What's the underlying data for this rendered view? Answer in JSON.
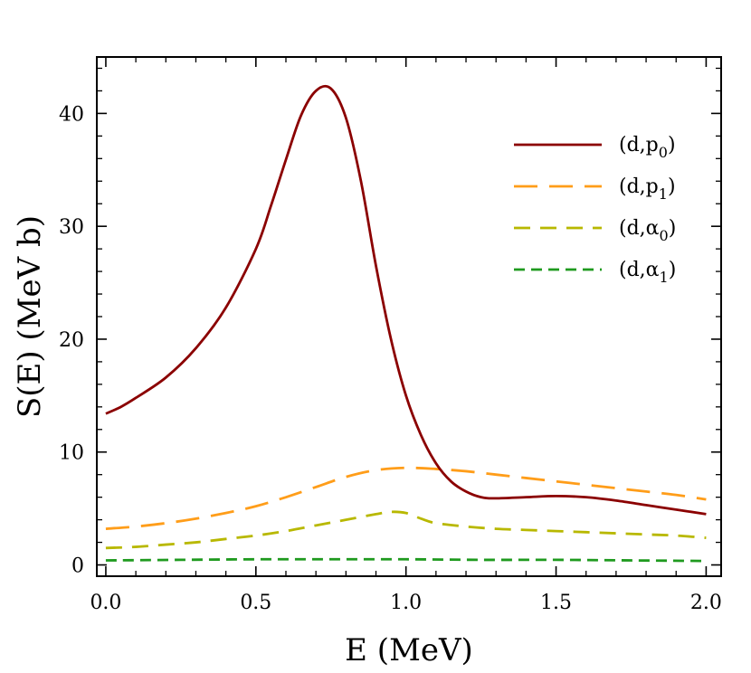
{
  "chart_data": {
    "type": "line",
    "title": "",
    "xlabel": "E (MeV)",
    "ylabel": "S(E) (MeV b)",
    "xlim": [
      -0.03,
      2.05
    ],
    "ylim": [
      -1,
      45
    ],
    "xticks": [
      {
        "value": 0.0,
        "label": "0.0"
      },
      {
        "value": 0.5,
        "label": "0.5"
      },
      {
        "value": 1.0,
        "label": "1.0"
      },
      {
        "value": 1.5,
        "label": "1.5"
      },
      {
        "value": 2.0,
        "label": "2.0"
      }
    ],
    "yticks": [
      {
        "value": 0,
        "label": "0"
      },
      {
        "value": 10,
        "label": "10"
      },
      {
        "value": 20,
        "label": "20"
      },
      {
        "value": 30,
        "label": "30"
      },
      {
        "value": 40,
        "label": "40"
      }
    ],
    "grid": false,
    "legend_position": "top-right",
    "series": [
      {
        "name": "(d,p0)",
        "label_main": "(d,p",
        "label_sub": "0",
        "label_close": ")",
        "color": "#8b0000",
        "dash": "solid",
        "x": [
          0.0,
          0.05,
          0.1,
          0.2,
          0.3,
          0.4,
          0.5,
          0.55,
          0.6,
          0.65,
          0.7,
          0.75,
          0.8,
          0.85,
          0.9,
          0.95,
          1.0,
          1.05,
          1.1,
          1.15,
          1.2,
          1.25,
          1.3,
          1.4,
          1.5,
          1.6,
          1.7,
          1.8,
          1.9,
          2.0
        ],
        "y": [
          13.4,
          14.0,
          14.8,
          16.6,
          19.2,
          22.8,
          28.0,
          31.8,
          35.9,
          39.8,
          42.0,
          42.2,
          39.6,
          34.0,
          26.5,
          20.0,
          15.0,
          11.5,
          9.0,
          7.4,
          6.5,
          6.0,
          5.9,
          6.0,
          6.1,
          6.0,
          5.7,
          5.3,
          4.9,
          4.5
        ]
      },
      {
        "name": "(d,p1)",
        "label_main": "(d,p",
        "label_sub": "1",
        "label_close": ")",
        "color": "#ff9d19",
        "dash": "26 13",
        "x": [
          0.0,
          0.1,
          0.2,
          0.3,
          0.4,
          0.5,
          0.6,
          0.7,
          0.8,
          0.9,
          1.0,
          1.1,
          1.2,
          1.3,
          1.4,
          1.5,
          1.6,
          1.7,
          1.8,
          1.9,
          2.0
        ],
        "y": [
          3.2,
          3.4,
          3.7,
          4.1,
          4.6,
          5.2,
          6.0,
          6.9,
          7.8,
          8.4,
          8.6,
          8.5,
          8.3,
          8.0,
          7.7,
          7.4,
          7.1,
          6.8,
          6.5,
          6.2,
          5.8
        ]
      },
      {
        "name": "(d,α0)",
        "label_main": "(d,α",
        "label_sub": "0",
        "label_close": ")",
        "color": "#b8b800",
        "dash": "18 11",
        "x": [
          0.0,
          0.1,
          0.2,
          0.3,
          0.4,
          0.5,
          0.6,
          0.7,
          0.8,
          0.9,
          0.95,
          1.0,
          1.05,
          1.1,
          1.2,
          1.3,
          1.4,
          1.5,
          1.6,
          1.7,
          1.8,
          1.9,
          2.0
        ],
        "y": [
          1.5,
          1.6,
          1.8,
          2.0,
          2.3,
          2.6,
          3.0,
          3.5,
          4.0,
          4.5,
          4.7,
          4.6,
          4.1,
          3.7,
          3.4,
          3.2,
          3.1,
          3.0,
          2.9,
          2.8,
          2.7,
          2.6,
          2.4
        ]
      },
      {
        "name": "(d,α1)",
        "label_main": "(d,α",
        "label_sub": "1",
        "label_close": ")",
        "color": "#1f9a1f",
        "dash": "12 7",
        "x": [
          0.0,
          0.25,
          0.5,
          0.75,
          1.0,
          1.25,
          1.5,
          1.75,
          2.0
        ],
        "y": [
          0.4,
          0.45,
          0.5,
          0.5,
          0.5,
          0.45,
          0.45,
          0.4,
          0.35
        ]
      }
    ]
  }
}
